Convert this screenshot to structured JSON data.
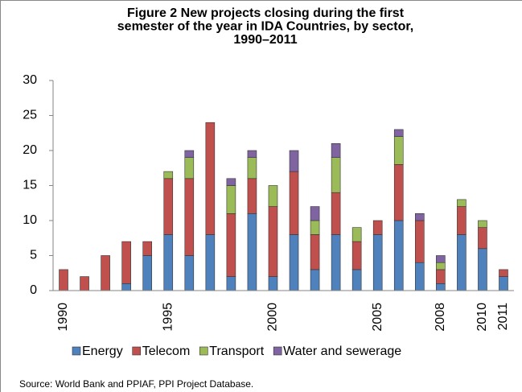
{
  "chart_data": {
    "type": "stacked_bar",
    "title": [
      "Figure 2 New projects closing during the first",
      "semester of the year in IDA Countries, by sector,",
      "1990–2011"
    ],
    "categories": [
      "1990",
      null,
      null,
      null,
      null,
      "1995",
      null,
      null,
      null,
      null,
      "2000",
      null,
      null,
      null,
      null,
      "2005",
      null,
      null,
      "2008",
      null,
      "2010",
      "2011"
    ],
    "series": [
      {
        "name": "Energy",
        "color": "#4f81bd",
        "values": [
          0,
          0,
          0,
          1,
          5,
          8,
          5,
          8,
          2,
          11,
          2,
          8,
          3,
          8,
          3,
          8,
          10,
          4,
          1,
          8,
          6,
          2
        ]
      },
      {
        "name": "Telecom",
        "color": "#c0504d",
        "values": [
          3,
          2,
          5,
          6,
          2,
          8,
          11,
          16,
          9,
          5,
          10,
          9,
          5,
          6,
          4,
          2,
          8,
          6,
          2,
          4,
          3,
          1
        ]
      },
      {
        "name": "Transport",
        "color": "#9bbb59",
        "values": [
          0,
          0,
          0,
          0,
          0,
          1,
          3,
          0,
          4,
          3,
          3,
          0,
          2,
          5,
          2,
          0,
          4,
          0,
          1,
          1,
          1,
          0
        ]
      },
      {
        "name": "Water and sewerage",
        "color": "#8064a2",
        "values": [
          0,
          0,
          0,
          0,
          0,
          0,
          1,
          0,
          1,
          1,
          0,
          3,
          2,
          2,
          0,
          0,
          1,
          1,
          1,
          0,
          0,
          0
        ]
      }
    ],
    "ylim": [
      0,
      30
    ],
    "yticks": [
      0,
      5,
      10,
      15,
      20,
      25,
      30
    ],
    "legend": "bottom",
    "source": "Source:  World Bank and PPIAF, PPI Project Database."
  }
}
